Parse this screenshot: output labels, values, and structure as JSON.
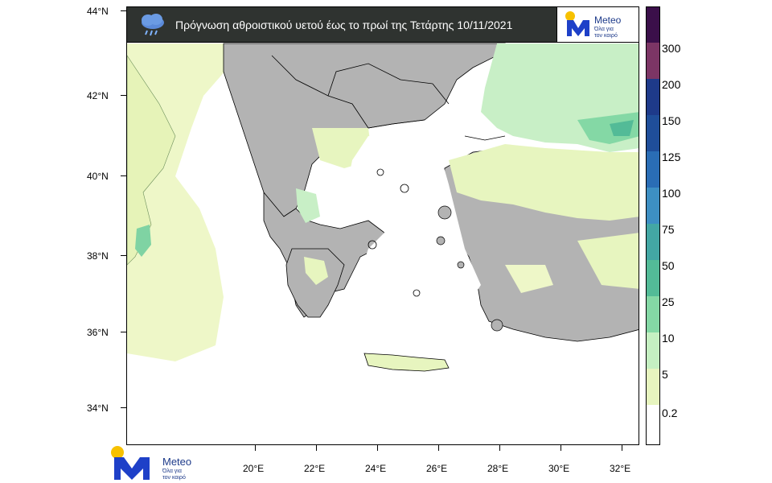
{
  "title": "Πρόγνωση αθροιστικού υετού έως το πρωί της Τετάρτης 10/11/2021",
  "brand": {
    "name": "Meteo",
    "tagline_line1": "Όλα για",
    "tagline_line2": "τον καιρό"
  },
  "icons": {
    "weather": "rain-cloud-icon",
    "logo": "meteo-m-logo"
  },
  "y_axis": [
    "44°N",
    "42°N",
    "40°N",
    "38°N",
    "36°N",
    "34°N"
  ],
  "x_axis": [
    "20°E",
    "22°E",
    "24°E",
    "26°E",
    "28°E",
    "30°E",
    "32°E"
  ],
  "legend": {
    "labels": [
      "300",
      "200",
      "150",
      "125",
      "100",
      "75",
      "50",
      "25",
      "10",
      "5",
      "0.2"
    ],
    "colors": [
      "#3b0f4a",
      "#7c3565",
      "#1e3a8a",
      "#1f4e9a",
      "#2a6db5",
      "#3d8fc3",
      "#43a7a4",
      "#53bb97",
      "#84d8a5",
      "#c5f0c2",
      "#e7f5bf",
      "#ffffff"
    ]
  },
  "palette": {
    "land_dry": "#b3b3b3",
    "sea": "#ffffff",
    "light_rain": "#eef7c8",
    "moderate_rain": "#c8efc6",
    "heavier_rain": "#7fd3a3"
  }
}
